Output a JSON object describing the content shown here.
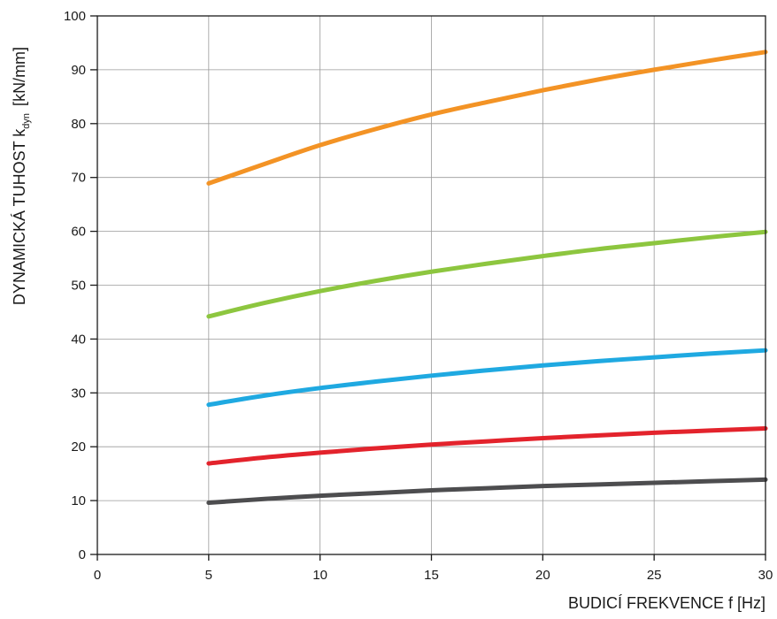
{
  "chart_data": {
    "type": "line",
    "xlabel": "BUDICÍ FREKVENCE f [Hz]",
    "ylabel": {
      "main": "DYNAMICKÁ TUHOST k",
      "subscript": "dyn",
      "unit": "[kN/mm]"
    },
    "xlim": [
      0,
      30
    ],
    "ylim": [
      0,
      100
    ],
    "xticks": [
      0,
      5,
      10,
      15,
      20,
      25,
      30
    ],
    "yticks": [
      0,
      10,
      20,
      30,
      40,
      50,
      60,
      70,
      80,
      90,
      100
    ],
    "grid": true,
    "x": [
      5,
      7.5,
      10,
      12.5,
      15,
      17.5,
      20,
      22.5,
      25,
      27.5,
      30
    ],
    "series": [
      {
        "color": "#f39325",
        "values": [
          68.9,
          72.5,
          76.0,
          79.0,
          81.7,
          84.0,
          86.2,
          88.2,
          90.0,
          91.7,
          93.3
        ]
      },
      {
        "color": "#8dc63f",
        "values": [
          44.2,
          46.7,
          48.9,
          50.8,
          52.5,
          54.0,
          55.4,
          56.7,
          57.8,
          58.9,
          59.9
        ]
      },
      {
        "color": "#1fa9e1",
        "values": [
          27.8,
          29.5,
          30.9,
          32.1,
          33.2,
          34.2,
          35.1,
          35.9,
          36.6,
          37.3,
          37.9
        ]
      },
      {
        "color": "#e3232c",
        "values": [
          16.9,
          18.0,
          18.9,
          19.7,
          20.4,
          21.0,
          21.6,
          22.1,
          22.6,
          23.0,
          23.4
        ]
      },
      {
        "color": "#4d4d4f",
        "values": [
          9.6,
          10.3,
          10.9,
          11.4,
          11.9,
          12.3,
          12.7,
          13.0,
          13.3,
          13.6,
          13.9
        ]
      }
    ]
  }
}
